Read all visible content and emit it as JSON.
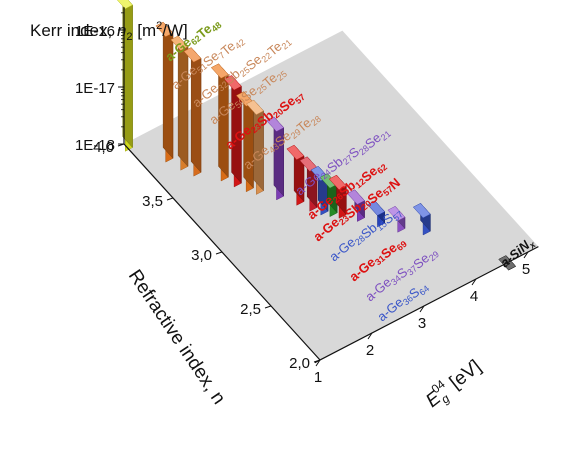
{
  "chart_data": {
    "type": "bar",
    "projection": "3d",
    "x_axis": {
      "label": "E",
      "label_sub": "g",
      "label_sup": "04",
      "label_unit": " [eV]",
      "ticks": [
        1,
        2,
        3,
        4,
        5
      ]
    },
    "y_axis": {
      "label": "Refractive index, n",
      "ticks": [
        "2,0",
        "2,5",
        "3,0",
        "3,5",
        "4,0"
      ]
    },
    "z_axis": {
      "label_main": "Kerr index, ",
      "label_italic": "n",
      "label_sub": "2",
      "label_unit": " [m",
      "label_sup": "2",
      "label_end": "/W]",
      "ticks": [
        "1E-18",
        "1E-17",
        "1E-16"
      ],
      "scale": "log"
    },
    "materials": [
      {
        "parts": [
          [
            "a-Ge",
            ""
          ],
          [
            "62",
            "sub"
          ],
          [
            "Te",
            ""
          ],
          [
            "48",
            "sub"
          ]
        ],
        "color": "#7a9a1a",
        "bold": true
      },
      {
        "parts": [
          [
            "a-Ge",
            ""
          ],
          [
            "51",
            "sub"
          ],
          [
            "Se",
            ""
          ],
          [
            "7",
            "sub"
          ],
          [
            "Te",
            ""
          ],
          [
            "42",
            "sub"
          ]
        ],
        "color": "#c8875a"
      },
      {
        "parts": [
          [
            "a-Ge",
            ""
          ],
          [
            "32",
            "sub"
          ],
          [
            "Sb",
            ""
          ],
          [
            "25",
            "sub"
          ],
          [
            "Se",
            ""
          ],
          [
            "22",
            "sub"
          ],
          [
            "Te",
            ""
          ],
          [
            "21",
            "sub"
          ]
        ],
        "color": "#c8875a"
      },
      {
        "parts": [
          [
            "a-Ge",
            ""
          ],
          [
            "50",
            "sub"
          ],
          [
            "Se",
            ""
          ],
          [
            "25",
            "sub"
          ],
          [
            "Te",
            ""
          ],
          [
            "25",
            "sub"
          ]
        ],
        "color": "#c8875a"
      },
      {
        "parts": [
          [
            "a-Ge",
            ""
          ],
          [
            "23",
            "sub"
          ],
          [
            "Sb",
            ""
          ],
          [
            "20",
            "sub"
          ],
          [
            "Se",
            ""
          ],
          [
            "57",
            "sub"
          ]
        ],
        "color": "#dd1111",
        "bold": true
      },
      {
        "parts": [
          [
            "a-Ge",
            ""
          ],
          [
            "43",
            "sub"
          ],
          [
            "Se",
            ""
          ],
          [
            "29",
            "sub"
          ],
          [
            "Te",
            ""
          ],
          [
            "28",
            "sub"
          ]
        ],
        "color": "#c8875a"
      },
      {
        "parts": [
          [
            "a-Ge",
            ""
          ],
          [
            "24",
            "sub"
          ],
          [
            "Sb",
            ""
          ],
          [
            "27",
            "sub"
          ],
          [
            "S",
            ""
          ],
          [
            "28",
            "sub"
          ],
          [
            "Se",
            ""
          ],
          [
            "21",
            "sub"
          ]
        ],
        "color": "#7d4fc0"
      },
      {
        "parts": [
          [
            "a-Ge",
            ""
          ],
          [
            "26",
            "sub"
          ],
          [
            "Sb",
            ""
          ],
          [
            "12",
            "sub"
          ],
          [
            "Se",
            ""
          ],
          [
            "62",
            "sub"
          ]
        ],
        "color": "#dd1111",
        "bold": true
      },
      {
        "parts": [
          [
            "a-Ge",
            ""
          ],
          [
            "23",
            "sub"
          ],
          [
            "Sb",
            ""
          ],
          [
            "20",
            "sub"
          ],
          [
            "Se",
            ""
          ],
          [
            "57",
            "sub"
          ],
          [
            "N",
            ""
          ]
        ],
        "color": "#dd1111",
        "bold": true
      },
      {
        "parts": [
          [
            "a-Ge",
            ""
          ],
          [
            "28",
            "sub"
          ],
          [
            "Sb",
            ""
          ],
          [
            "15",
            "sub"
          ],
          [
            "S",
            ""
          ],
          [
            "57",
            "sub"
          ]
        ],
        "color": "#3a56c8"
      },
      {
        "parts": [
          [
            "a-Ge",
            ""
          ],
          [
            "31",
            "sub"
          ],
          [
            "Se",
            ""
          ],
          [
            "69",
            "sub"
          ]
        ],
        "color": "#dd1111",
        "bold": true
      },
      {
        "parts": [
          [
            "a-Ge",
            ""
          ],
          [
            "34",
            "sub"
          ],
          [
            "S",
            ""
          ],
          [
            "37",
            "sub"
          ],
          [
            "Se",
            ""
          ],
          [
            "29",
            "sub"
          ]
        ],
        "color": "#7d4fc0"
      },
      {
        "parts": [
          [
            "a-Ge",
            ""
          ],
          [
            "36",
            "sub"
          ],
          [
            "S",
            ""
          ],
          [
            "64",
            "sub"
          ]
        ],
        "color": "#3a56c8"
      },
      {
        "parts": [
          [
            "a-SiN",
            ""
          ],
          [
            "x",
            "sub"
          ]
        ],
        "color": "#111111",
        "bold": true
      }
    ],
    "bars": [
      {
        "x": 1.0,
        "n": 4.0,
        "color": "#e6f020",
        "z": -15.5
      },
      {
        "x": 1.4,
        "n": 3.8,
        "color": "#f07818",
        "z": -15.8
      },
      {
        "x": 1.5,
        "n": 3.7,
        "color": "#f08c30",
        "z": -15.9
      },
      {
        "x": 1.6,
        "n": 3.62,
        "color": "#ee7820",
        "z": -16.0
      },
      {
        "x": 1.9,
        "n": 3.5,
        "color": "#f07818",
        "z": -16.2
      },
      {
        "x": 2.0,
        "n": 3.42,
        "color": "#e81818",
        "z": -16.3
      },
      {
        "x": 2.1,
        "n": 3.35,
        "color": "#f07818",
        "z": -16.5
      },
      {
        "x": 2.2,
        "n": 3.3,
        "color": "#f0a058",
        "z": -16.6
      },
      {
        "x": 2.4,
        "n": 3.2,
        "color": "#8a44c8",
        "z": -16.8
      },
      {
        "x": 2.6,
        "n": 3.1,
        "color": "#e81818",
        "z": -17.2
      },
      {
        "x": 2.7,
        "n": 3.02,
        "color": "#d82030",
        "z": -17.3
      },
      {
        "x": 2.8,
        "n": 2.96,
        "color": "#3a5ad8",
        "z": -17.4
      },
      {
        "x": 2.9,
        "n": 2.92,
        "color": "#2a9a2a",
        "z": -17.5
      },
      {
        "x": 3.0,
        "n": 2.88,
        "color": "#e81818",
        "z": -17.5
      },
      {
        "x": 3.2,
        "n": 2.8,
        "color": "#8a44c8",
        "z": -17.7
      },
      {
        "x": 3.4,
        "n": 2.7,
        "color": "#2a4ad0",
        "z": -17.8
      },
      {
        "x": 3.6,
        "n": 2.6,
        "color": "#9a5ad8",
        "z": -17.8
      },
      {
        "x": 3.9,
        "n": 2.5,
        "color": "#3a5ad8",
        "z": -17.7
      },
      {
        "x": 4.6,
        "n": 2.0,
        "color": "#222222",
        "z": -18.0
      }
    ]
  }
}
